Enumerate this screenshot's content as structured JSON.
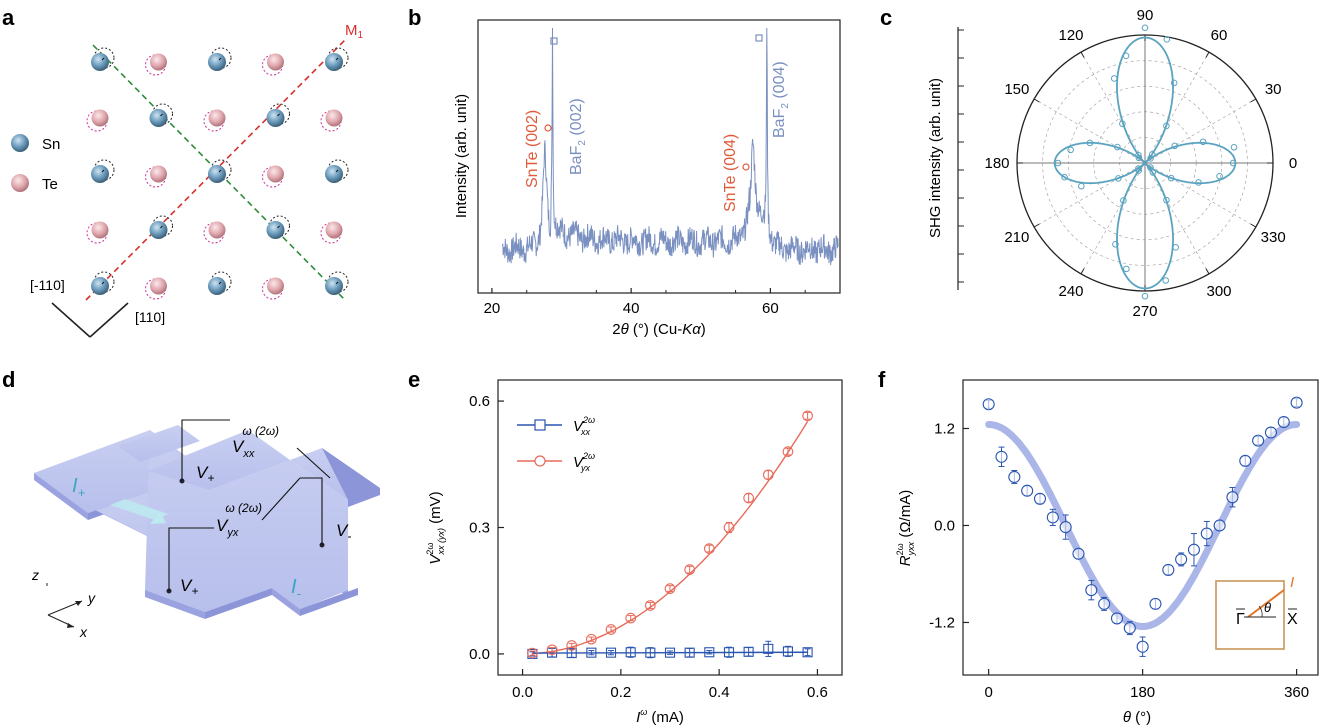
{
  "panels": {
    "a": {
      "letter": "a",
      "legend": [
        {
          "label": "Sn",
          "color": "#5f8fb0"
        },
        {
          "label": "Te",
          "color": "#d9a0a6"
        }
      ],
      "mirror_label": "M",
      "mirror_sub": "1",
      "dir_left": "[-110]",
      "dir_right": "[110]",
      "colors": {
        "red_line": "#d6302b",
        "green_line": "#2e8b3a",
        "te_ring": "#cc3399"
      }
    },
    "b": {
      "letter": "b",
      "ylabel": "Intensity (arb. unit)",
      "xlabel_parts": [
        "2",
        "θ",
        " (°) (Cu-",
        "Kα",
        ")"
      ],
      "peak_labels": [
        {
          "text": "SnTe (002)",
          "color": "#e05a3a"
        },
        {
          "text": "BaF",
          "sub": "2",
          "rest": " (002)",
          "color": "#7a90c0"
        },
        {
          "text": "SnTe (004)",
          "color": "#e05a3a"
        },
        {
          "text": "BaF",
          "sub": "2",
          "rest": " (004)",
          "color": "#7a90c0"
        }
      ],
      "chart_data": {
        "type": "line",
        "xlim": [
          18,
          70
        ],
        "xticks": [
          20,
          40,
          60
        ],
        "peaks": [
          {
            "x": 28.7,
            "label": "BaF2 (002)",
            "marker": "square"
          },
          {
            "x": 27.6,
            "label": "SnTe (002)",
            "marker": "circle"
          },
          {
            "x": 59.5,
            "label": "BaF2 (004)",
            "marker": "square"
          },
          {
            "x": 57.5,
            "label": "SnTe (004)",
            "marker": "circle"
          }
        ]
      }
    },
    "c": {
      "letter": "c",
      "ylabel": "SHG intensity (arb. unit)",
      "chart_data": {
        "type": "scatter",
        "projection": "polar",
        "angle_labels": [
          "0",
          "30",
          "60",
          "90",
          "120",
          "150",
          "180",
          "210",
          "240",
          "270",
          "300",
          "330"
        ],
        "fit": "four-lobe |cos(2θ)|-like pattern with maxima at 0, 90, 180, 270",
        "color": "#5aa3c0"
      }
    },
    "d": {
      "letter": "d",
      "labels": {
        "i_plus": "I",
        "i_plus_sub": "+",
        "i_minus": "I",
        "i_minus_sub": "-",
        "v_plus_top": "V",
        "v_plus_top_sub": "+",
        "v_plus_bot": "V",
        "v_plus_bot_sub": "+",
        "v_minus": "V",
        "v_minus_sub": "-",
        "vxx": "V",
        "vxx_sub": "xx",
        "vxx_sup": "ω (2ω)",
        "vyx": "V",
        "vyx_sub": "yx",
        "vyx_sup": "ω (2ω)",
        "axis_z": "z",
        "axis_y": "y",
        "axis_x": "x"
      }
    },
    "e": {
      "letter": "e",
      "ylabel_main": "V",
      "ylabel_sup": "2ω",
      "ylabel_sub": "xx (yx)",
      "ylabel_unit": " (mV)",
      "xlabel_main": "I",
      "xlabel_sup": "ω",
      "xlabel_unit": " (mA)",
      "chart_data": {
        "type": "scatter",
        "xlim": [
          -0.05,
          0.65
        ],
        "ylim": [
          -0.05,
          0.65
        ],
        "xticks": [
          0.0,
          0.2,
          0.4,
          0.6
        ],
        "yticks": [
          0.0,
          0.3,
          0.6
        ],
        "xtick_labels": [
          "0.0",
          "0.2",
          "0.4",
          "0.6"
        ],
        "ytick_labels": [
          "0.0",
          "0.3",
          "0.6"
        ],
        "series": [
          {
            "name": "V_xx^2ω",
            "legend_main": "V",
            "legend_sup": "2ω",
            "legend_sub": "xx",
            "color": "#2a55b0",
            "marker": "square",
            "x": [
              0.02,
              0.06,
              0.1,
              0.14,
              0.18,
              0.22,
              0.26,
              0.3,
              0.34,
              0.38,
              0.42,
              0.46,
              0.5,
              0.54,
              0.58
            ],
            "y": [
              0.0,
              0.003,
              0.002,
              0.003,
              0.003,
              0.004,
              0.003,
              0.003,
              0.003,
              0.004,
              0.004,
              0.005,
              0.012,
              0.006,
              0.004
            ],
            "err": [
              0.005,
              0.01,
              0.01,
              0.005,
              0.005,
              0.012,
              0.012,
              0.004,
              0.01,
              0.004,
              0.012,
              0.01,
              0.018,
              0.012,
              0.008
            ]
          },
          {
            "name": "V_yx^2ω",
            "legend_main": "V",
            "legend_sup": "2ω",
            "legend_sub": "yx",
            "color": "#e86a5a",
            "marker": "circle",
            "x": [
              0.02,
              0.06,
              0.1,
              0.14,
              0.18,
              0.22,
              0.26,
              0.3,
              0.34,
              0.38,
              0.42,
              0.46,
              0.5,
              0.54,
              0.58
            ],
            "y": [
              0.002,
              0.01,
              0.02,
              0.035,
              0.058,
              0.085,
              0.115,
              0.155,
              0.2,
              0.25,
              0.3,
              0.37,
              0.425,
              0.48,
              0.565
            ],
            "err": [
              0.005,
              0.005,
              0.005,
              0.005,
              0.006,
              0.006,
              0.007,
              0.007,
              0.008,
              0.008,
              0.012,
              0.01,
              0.01,
              0.008,
              0.008
            ]
          }
        ]
      }
    },
    "f": {
      "letter": "f",
      "ylabel_main": "R",
      "ylabel_sup": "2ω",
      "ylabel_sub": "yxx",
      "ylabel_unit": " (Ω/mA)",
      "xlabel_main": "θ",
      "xlabel_unit": " (°)",
      "inset": {
        "gamma": "Γ",
        "x": "X",
        "theta": "θ",
        "current": "I"
      },
      "chart_data": {
        "type": "scatter",
        "xlim": [
          -30,
          385
        ],
        "ylim": [
          -1.85,
          1.8
        ],
        "xticks": [
          0,
          180,
          360
        ],
        "yticks": [
          -1.2,
          0.0,
          1.2
        ],
        "xtick_labels": [
          "0",
          "180",
          "360"
        ],
        "ytick_labels": [
          "-1.2",
          "0.0",
          "1.2"
        ],
        "series": [
          {
            "name": "data",
            "color": "#2a55b0",
            "marker": "circle",
            "x": [
              0,
              15,
              30,
              45,
              60,
              75,
              90,
              105,
              120,
              135,
              150,
              165,
              180,
              195,
              210,
              225,
              240,
              255,
              270,
              285,
              300,
              315,
              330,
              345,
              360
            ],
            "y": [
              1.5,
              0.85,
              0.6,
              0.43,
              0.33,
              0.1,
              -0.02,
              -0.35,
              -0.8,
              -0.97,
              -1.15,
              -1.27,
              -1.5,
              -0.97,
              -0.55,
              -0.42,
              -0.3,
              -0.1,
              0.0,
              0.35,
              0.8,
              1.05,
              1.15,
              1.28,
              1.52
            ],
            "err": [
              0.05,
              0.12,
              0.08,
              0.06,
              0.06,
              0.1,
              0.15,
              0.06,
              0.12,
              0.08,
              0.06,
              0.08,
              0.12,
              0.06,
              0.06,
              0.08,
              0.2,
              0.15,
              0.06,
              0.12,
              0.06,
              0.05,
              0.06,
              0.06,
              0.05
            ]
          },
          {
            "name": "fit",
            "color": "#8f9ee0",
            "type": "line",
            "formula": "1.25*cos(θ)"
          }
        ]
      }
    }
  }
}
